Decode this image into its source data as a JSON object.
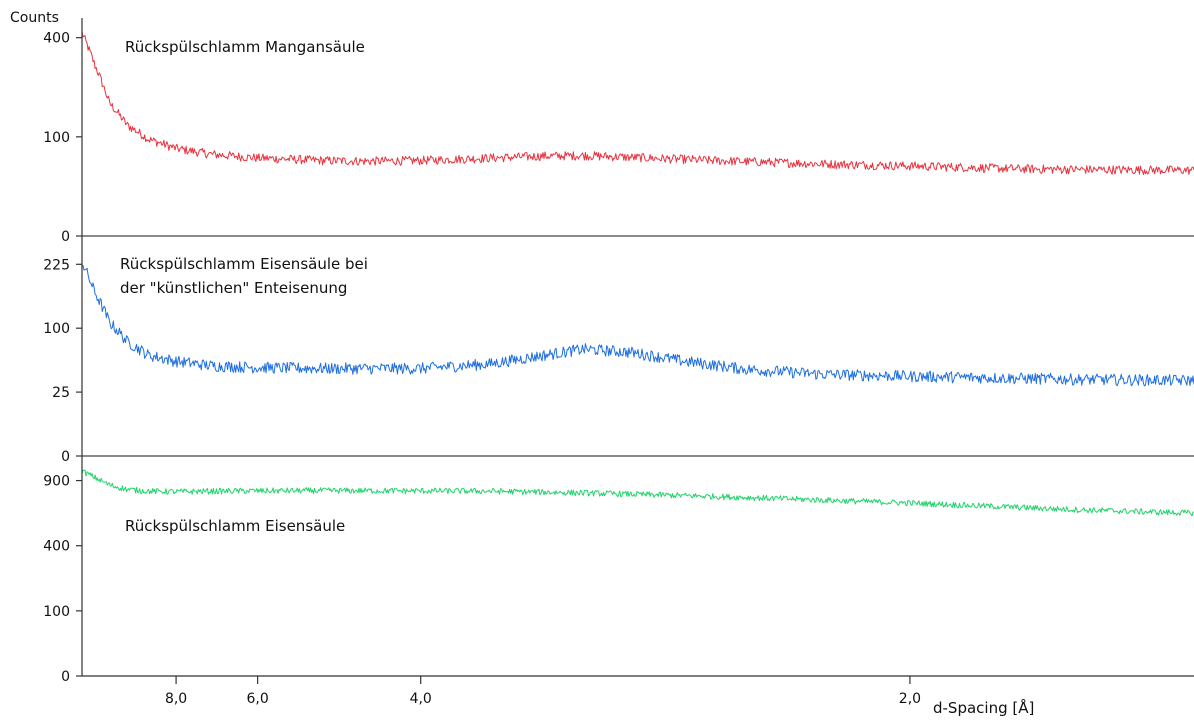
{
  "chart_data": {
    "type": "line",
    "y_axis_title": "Counts",
    "x_axis_title": "d-Spacing [Å]",
    "x_scale": "reciprocal",
    "x_range_d_spacing": [
      13.0,
      1.55
    ],
    "x_ticks": [
      {
        "value": 8.0,
        "label": "8,0"
      },
      {
        "value": 6.0,
        "label": "6,0"
      },
      {
        "value": 4.0,
        "label": "4,0"
      },
      {
        "value": 2.0,
        "label": "2,0"
      }
    ],
    "y_scale": "sqrt",
    "grid": false,
    "legend": "none",
    "panels": [
      {
        "name": "top",
        "annotation_lines": [
          "Rückspülschlamm Mangansäule"
        ],
        "color": "#e8333f",
        "y_range": [
          0,
          440
        ],
        "y_ticks": [
          {
            "value": 0,
            "label": "0"
          },
          {
            "value": 100,
            "label": "100"
          },
          {
            "value": 400,
            "label": "400"
          }
        ],
        "series": {
          "d_spacing": [
            13.0,
            12.0,
            11.0,
            10.0,
            9.0,
            8.0,
            7.0,
            6.0,
            5.0,
            4.5,
            4.0,
            3.5,
            3.2,
            3.0,
            2.8,
            2.5,
            2.2,
            2.0,
            1.8,
            1.7,
            1.55
          ],
          "counts": [
            420,
            300,
            180,
            125,
            95,
            78,
            68,
            62,
            58,
            57,
            58,
            62,
            65,
            66,
            63,
            58,
            53,
            50,
            46,
            45,
            44
          ]
        }
      },
      {
        "name": "middle",
        "annotation_lines": [
          "Rückspülschlamm Eisensäule bei",
          "der \"künstlichen\" Enteisenung"
        ],
        "color": "#1f6fe0",
        "y_range": [
          0,
          240
        ],
        "y_ticks": [
          {
            "value": 0,
            "label": "0"
          },
          {
            "value": 25,
            "label": "25"
          },
          {
            "value": 100,
            "label": "100"
          },
          {
            "value": 225,
            "label": "225"
          }
        ],
        "series": {
          "d_spacing": [
            13.0,
            12.0,
            11.0,
            10.0,
            9.0,
            8.0,
            7.0,
            6.0,
            5.0,
            4.0,
            3.5,
            3.2,
            3.0,
            2.8,
            2.6,
            2.4,
            2.2,
            2.0,
            1.8,
            1.7,
            1.55
          ],
          "counts": [
            230,
            165,
            110,
            80,
            62,
            55,
            50,
            48,
            47,
            47,
            52,
            62,
            70,
            66,
            55,
            46,
            41,
            39,
            37,
            36,
            35
          ]
        }
      },
      {
        "name": "bottom",
        "annotation_lines": [
          "Rückspülschlamm Eisensäule"
        ],
        "color": "#21d36a",
        "y_range": [
          0,
          1000
        ],
        "y_ticks": [
          {
            "value": 0,
            "label": "0"
          },
          {
            "value": 100,
            "label": "100"
          },
          {
            "value": 400,
            "label": "400"
          },
          {
            "value": 900,
            "label": "900"
          }
        ],
        "series": {
          "d_spacing": [
            13.0,
            12.0,
            11.0,
            10.0,
            9.0,
            8.0,
            7.0,
            6.0,
            5.0,
            4.0,
            3.5,
            3.0,
            2.5,
            2.2,
            2.0,
            1.8,
            1.7,
            1.55
          ],
          "counts": [
            990,
            930,
            860,
            820,
            805,
            800,
            805,
            808,
            810,
            808,
            805,
            790,
            760,
            730,
            705,
            670,
            650,
            625
          ]
        }
      }
    ]
  }
}
